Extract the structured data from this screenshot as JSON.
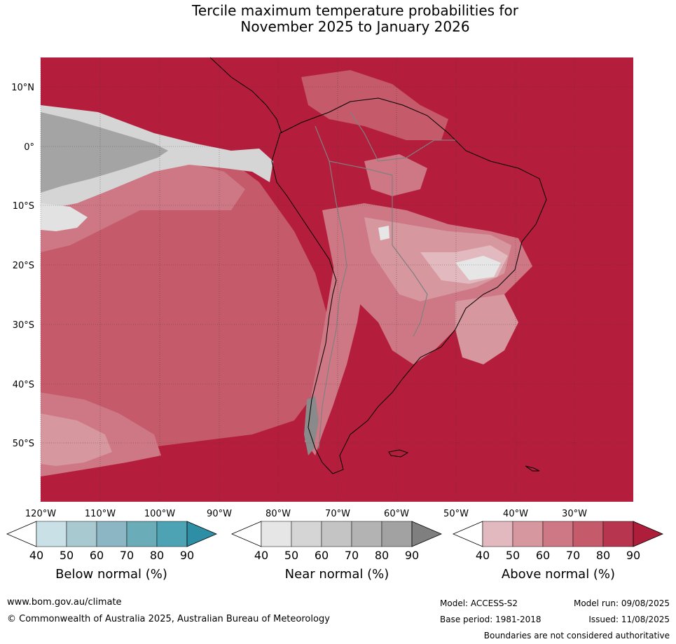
{
  "title_line1": "Tercile maximum temperature probabilities for",
  "title_line2": "November 2025 to January 2026",
  "lat_labels": [
    "10°N",
    "0°",
    "10°S",
    "20°S",
    "30°S",
    "40°S",
    "50°S"
  ],
  "lon_labels": [
    "120°W",
    "110°W",
    "100°W",
    "90°W",
    "80°W",
    "70°W",
    "60°W",
    "50°W",
    "40°W",
    "30°W"
  ],
  "colorbars": [
    {
      "title": "Below normal (%)",
      "ticks": [
        "40",
        "50",
        "60",
        "70",
        "80",
        "90"
      ],
      "colors": [
        "#c9e0e7",
        "#a9c9d1",
        "#8cb6c3",
        "#6bacb9",
        "#4da3b3",
        "#2d8ea5"
      ]
    },
    {
      "title": "Near normal (%)",
      "ticks": [
        "40",
        "50",
        "60",
        "70",
        "80",
        "90"
      ],
      "colors": [
        "#e6e6e6",
        "#d5d5d5",
        "#c4c4c4",
        "#b3b3b3",
        "#a2a2a2",
        "#7f7f7f"
      ]
    },
    {
      "title": "Above normal (%)",
      "ticks": [
        "40",
        "50",
        "60",
        "70",
        "80",
        "90"
      ],
      "colors": [
        "#e1b9bf",
        "#d6979f",
        "#ce7885",
        "#c45a6a",
        "#b83550",
        "#ae1e3b"
      ]
    }
  ],
  "footer": {
    "website": "www.bom.gov.au/climate",
    "copyright": "© Commonwealth of Australia 2025, Australian Bureau of Meteorology",
    "model": "Model: ACCESS-S2",
    "base_period": "Base period: 1981-2018",
    "model_run": "Model run: 09/08/2025",
    "issued": "Issued: 11/08/2025",
    "disclaimer": "Boundaries are not considered authoritative"
  },
  "colors": {
    "above_dominant": "#b41e3c",
    "near_grey": "#a4a4a4"
  }
}
